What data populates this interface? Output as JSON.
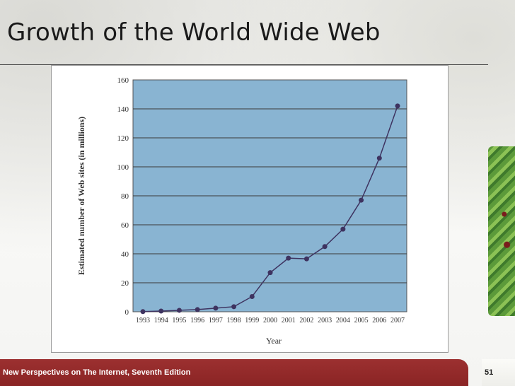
{
  "slide": {
    "title": "Growth of the World Wide Web",
    "footer": "New Perspectives on The Internet, Seventh Edition",
    "page_number": "51"
  },
  "colors": {
    "plot_bg": "#89b4d2",
    "line": "#3e3360",
    "footer": "#8e2727"
  },
  "chart_data": {
    "type": "line",
    "title": "",
    "xlabel": "Year",
    "ylabel": "Estimated number of Web sites (in millions)",
    "categories": [
      "1993",
      "1994",
      "1995",
      "1996",
      "1997",
      "1998",
      "1999",
      "2000",
      "2001",
      "2002",
      "2003",
      "2004",
      "2005",
      "2006",
      "2007"
    ],
    "series": [
      {
        "values": [
          0.1,
          0.5,
          1,
          1.5,
          2.5,
          3.5,
          10.5,
          27,
          37,
          36.5,
          45,
          57,
          77,
          106,
          142
        ]
      }
    ],
    "ylim": [
      0,
      160
    ],
    "yticks": [
      0,
      20,
      40,
      60,
      80,
      100,
      120,
      140,
      160
    ],
    "grid": true
  }
}
